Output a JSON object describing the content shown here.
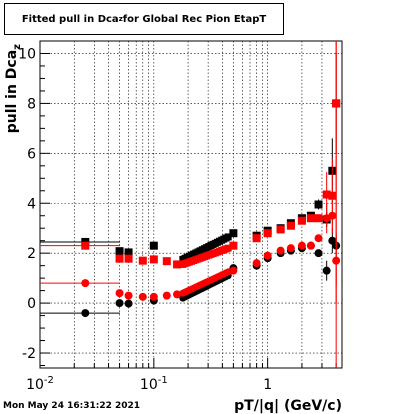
{
  "title_parts": {
    "prefix": "Fitted pull in Dca",
    "subscript": "z",
    "suffix": " for Global Rec Pion EtapT"
  },
  "timestamp": "Mon May 24 16:31:22 2021",
  "chart_data": {
    "type": "scatter",
    "title": "Fitted pull in Dca_z for Global Rec Pion EtapT",
    "xlabel": "pT/|q| (GeV/c)",
    "ylabel": "pull in Dca_z",
    "xscale": "log",
    "xlim": [
      0.01,
      4.5
    ],
    "ylim": [
      -2.6,
      10.5
    ],
    "x_tick_labels": [
      {
        "value": 0.01,
        "base": "10",
        "exp": "-2"
      },
      {
        "value": 0.1,
        "base": "10",
        "exp": "-1"
      },
      {
        "value": 1,
        "base": "1",
        "exp": ""
      }
    ],
    "y_ticks": [
      -2,
      0,
      2,
      4,
      6,
      8,
      10
    ],
    "grid": true,
    "colors": {
      "black": "#000000",
      "red": "#ff0000"
    },
    "series": [
      {
        "color": "#000000",
        "kind": "mean",
        "points": [
          [
            0.025,
            2.45,
            0.0095,
            0.0505,
            0.1
          ],
          [
            0.05,
            2.08,
            0.0475,
            0.053,
            0.0
          ],
          [
            0.06,
            2.03,
            0.058,
            0.062,
            0.0
          ],
          [
            0.1,
            2.3,
            0.094,
            0.106,
            0.0
          ],
          [
            0.5,
            2.8,
            0.47,
            0.53,
            0.0
          ],
          [
            0.8,
            2.7,
            0.75,
            0.85,
            0.0
          ],
          [
            1.0,
            2.9,
            0.95,
            1.05,
            0.0
          ],
          [
            1.3,
            3.0,
            1.25,
            1.35,
            0.0
          ],
          [
            1.6,
            3.2,
            1.55,
            1.65,
            0.0
          ],
          [
            2.0,
            3.4,
            1.9,
            2.1,
            0.0
          ],
          [
            2.4,
            3.5,
            2.3,
            2.5,
            0.05
          ],
          [
            2.8,
            3.95,
            2.7,
            2.9,
            0.2
          ],
          [
            3.3,
            3.35,
            3.2,
            3.4,
            0.3
          ],
          [
            3.7,
            5.3,
            3.6,
            3.8,
            1.3
          ],
          [
            4.0,
            8.0,
            3.9,
            4.1,
            2.0
          ]
        ]
      },
      {
        "color": "#000000",
        "kind": "sigma",
        "points": [
          [
            0.025,
            -0.4,
            0.0095,
            0.0505,
            0.05
          ],
          [
            0.05,
            0.0,
            0.0475,
            0.053,
            0.0
          ],
          [
            0.06,
            -0.02,
            0.058,
            0.062,
            0.0
          ],
          [
            0.1,
            0.1,
            0.094,
            0.106,
            0.0
          ],
          [
            0.5,
            1.4,
            0.47,
            0.53,
            0.0
          ],
          [
            0.8,
            1.5,
            0.75,
            0.85,
            0.0
          ],
          [
            1.0,
            1.8,
            0.95,
            1.05,
            0.0
          ],
          [
            1.3,
            2.0,
            1.25,
            1.35,
            0.0
          ],
          [
            1.6,
            2.1,
            1.55,
            1.65,
            0.0
          ],
          [
            2.0,
            2.2,
            1.9,
            2.1,
            0.0
          ],
          [
            2.4,
            2.3,
            2.3,
            2.5,
            0.1
          ],
          [
            2.8,
            2.0,
            2.7,
            2.9,
            0.1
          ],
          [
            3.3,
            1.3,
            3.2,
            3.4,
            0.4
          ],
          [
            3.7,
            2.5,
            3.6,
            3.8,
            0.5
          ],
          [
            4.0,
            2.3,
            3.9,
            4.1,
            0.5
          ]
        ]
      },
      {
        "color": "#ff0000",
        "kind": "mean",
        "points": [
          [
            0.025,
            2.3,
            0.0095,
            0.0505,
            0.15
          ],
          [
            0.05,
            1.78,
            0.0475,
            0.053,
            0.0
          ],
          [
            0.06,
            1.78,
            0.058,
            0.062,
            0.0
          ],
          [
            0.08,
            1.7,
            0.075,
            0.085,
            0.0
          ],
          [
            0.1,
            1.75,
            0.094,
            0.106,
            0.0
          ],
          [
            0.13,
            1.68,
            0.125,
            0.135,
            0.0
          ],
          [
            0.16,
            1.55,
            0.155,
            0.165,
            0.0
          ],
          [
            0.5,
            2.3,
            0.47,
            0.53,
            0.0
          ],
          [
            0.8,
            2.6,
            0.75,
            0.85,
            0.0
          ],
          [
            1.0,
            2.8,
            0.95,
            1.05,
            0.0
          ],
          [
            1.3,
            2.95,
            1.25,
            1.35,
            0.0
          ],
          [
            1.6,
            3.1,
            1.55,
            1.65,
            0.0
          ],
          [
            2.0,
            3.3,
            1.9,
            2.1,
            0.0
          ],
          [
            2.4,
            3.4,
            2.3,
            2.5,
            0.05
          ],
          [
            2.8,
            3.4,
            2.7,
            2.9,
            0.1
          ],
          [
            3.3,
            4.35,
            3.2,
            3.4,
            0.9
          ],
          [
            3.7,
            4.3,
            3.6,
            3.8,
            1.5
          ],
          [
            4.0,
            8.0,
            3.9,
            4.1,
            8.0
          ]
        ]
      },
      {
        "color": "#ff0000",
        "kind": "sigma",
        "points": [
          [
            0.025,
            0.8,
            0.0095,
            0.0505,
            0.1
          ],
          [
            0.05,
            0.4,
            0.0475,
            0.053,
            0.0
          ],
          [
            0.06,
            0.3,
            0.058,
            0.062,
            0.0
          ],
          [
            0.08,
            0.25,
            0.075,
            0.085,
            0.0
          ],
          [
            0.1,
            0.25,
            0.094,
            0.106,
            0.0
          ],
          [
            0.13,
            0.3,
            0.125,
            0.135,
            0.0
          ],
          [
            0.16,
            0.35,
            0.155,
            0.165,
            0.0
          ],
          [
            0.5,
            1.3,
            0.47,
            0.53,
            0.0
          ],
          [
            0.8,
            1.6,
            0.75,
            0.85,
            0.0
          ],
          [
            1.0,
            1.9,
            0.95,
            1.05,
            0.0
          ],
          [
            1.3,
            2.1,
            1.25,
            1.35,
            0.0
          ],
          [
            1.6,
            2.2,
            1.55,
            1.65,
            0.0
          ],
          [
            2.0,
            2.3,
            1.9,
            2.1,
            0.0
          ],
          [
            2.4,
            2.3,
            2.3,
            2.5,
            0.1
          ],
          [
            2.8,
            2.6,
            2.7,
            2.9,
            0.1
          ],
          [
            3.3,
            3.4,
            3.2,
            3.4,
            0.6
          ],
          [
            3.7,
            3.5,
            3.6,
            3.8,
            0.6
          ],
          [
            4.0,
            1.7,
            3.9,
            4.1,
            1.0
          ]
        ]
      }
    ]
  }
}
